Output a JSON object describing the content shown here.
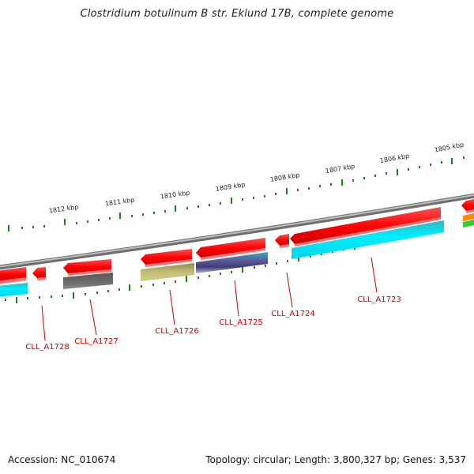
{
  "header": {
    "title": "Clostridium botulinum B str. Eklund 17B, complete genome"
  },
  "footer": {
    "accession": "Accession: NC_010674",
    "topology": "Topology: circular; Length: 3,800,327 bp; Genes: 3,537"
  },
  "scale": {
    "unit": "kbp",
    "ticks": [
      "1812 kbp",
      "1811 kbp",
      "1810 kbp",
      "1809 kbp",
      "1808 kbp",
      "1807 kbp",
      "1806 kbp",
      "1805 kbp"
    ]
  },
  "genes": {
    "labels": [
      "CLL_A1728",
      "CLL_A1727",
      "CLL_A1726",
      "CLL_A1725",
      "CLL_A1724",
      "CLL_A1723"
    ]
  },
  "colors": {
    "cds_strand": "#ff0000",
    "cog_cyan": "#00e5ee",
    "cog_gray": "#666666",
    "cog_olive": "#bdb76b",
    "cog_slate": "#6a6aa8",
    "cog_orange": "#ff8c00",
    "cog_green": "#33cc33",
    "backbone": "#8c8c8c",
    "tick": "#1e7f1e",
    "label": "#cc0000"
  }
}
